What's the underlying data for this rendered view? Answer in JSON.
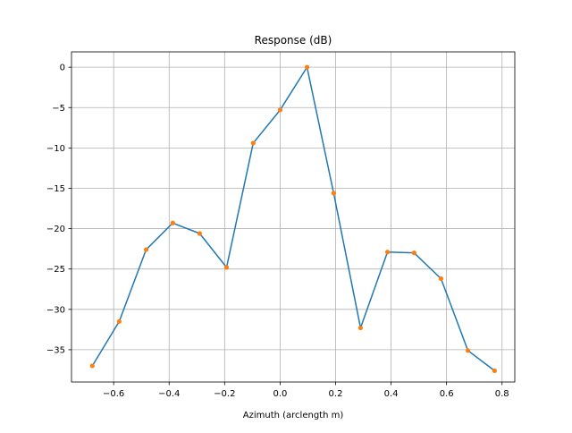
{
  "chart_data": {
    "type": "line",
    "title": "Response (dB)",
    "xlabel": "Azimuth (arclength m)",
    "ylabel": "",
    "xlim": [
      -0.752,
      0.846
    ],
    "ylim": [
      -39.0,
      1.9
    ],
    "xticks": [
      -0.6,
      -0.4,
      -0.2,
      0.0,
      0.2,
      0.4,
      0.6,
      0.8
    ],
    "xtick_labels": [
      "−0.6",
      "−0.4",
      "−0.2",
      "0.0",
      "0.2",
      "0.4",
      "0.6",
      "0.8"
    ],
    "yticks": [
      0,
      -5,
      -10,
      -15,
      -20,
      -25,
      -30,
      -35
    ],
    "ytick_labels": [
      "0",
      "−5",
      "−10",
      "−15",
      "−20",
      "−25",
      "−30",
      "−35"
    ],
    "grid": true,
    "series": [
      {
        "line_color": "#1f77b4",
        "marker_color": "#ff7f0e",
        "x": [
          -0.677,
          -0.58,
          -0.483,
          -0.387,
          -0.29,
          -0.193,
          -0.097,
          0.0,
          0.097,
          0.193,
          0.29,
          0.387,
          0.483,
          0.58,
          0.677,
          0.773
        ],
        "y": [
          -37.0,
          -31.5,
          -22.6,
          -19.3,
          -20.6,
          -24.8,
          -9.4,
          -5.3,
          0.0,
          -15.6,
          -32.3,
          -22.9,
          -23.0,
          -26.2,
          -35.1,
          -37.6
        ]
      }
    ]
  }
}
